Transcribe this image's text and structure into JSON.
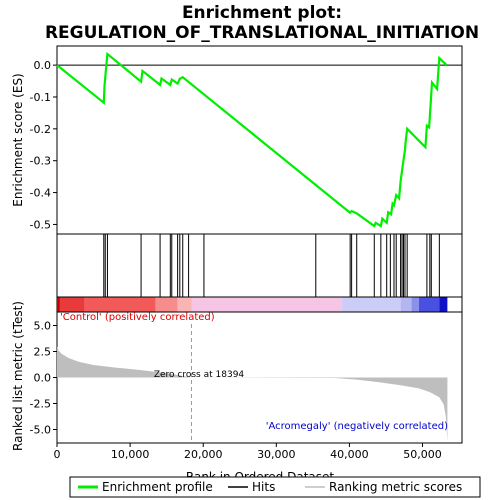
{
  "chart_data": {
    "type": "line",
    "title_line1": "Enrichment plot:",
    "title_line2": "REGULATION_OF_TRANSLATIONAL_INITIATION",
    "top_panel": {
      "ylabel": "Enrichment score (ES)",
      "ylim": [
        -0.53,
        0.06
      ],
      "yticks": [
        0.0,
        -0.1,
        -0.2,
        -0.3,
        -0.4,
        -0.5
      ],
      "ytick_labels": [
        "0.0",
        "-0.1",
        "-0.2",
        "-0.3",
        "-0.4",
        "-0.5"
      ],
      "line_color": "#00ee00",
      "es_points": [
        [
          0,
          0.0
        ],
        [
          6400,
          -0.118
        ],
        [
          6500,
          -0.065
        ],
        [
          6700,
          -0.012
        ],
        [
          6900,
          0.035
        ],
        [
          11500,
          -0.052
        ],
        [
          11700,
          -0.018
        ],
        [
          14100,
          -0.062
        ],
        [
          14300,
          -0.042
        ],
        [
          15500,
          -0.062
        ],
        [
          15700,
          -0.045
        ],
        [
          16500,
          -0.058
        ],
        [
          16800,
          -0.043
        ],
        [
          17200,
          -0.038
        ],
        [
          40100,
          -0.463
        ],
        [
          40300,
          -0.458
        ],
        [
          41000,
          -0.465
        ],
        [
          43400,
          -0.505
        ],
        [
          43600,
          -0.495
        ],
        [
          44300,
          -0.505
        ],
        [
          44500,
          -0.482
        ],
        [
          45100,
          -0.495
        ],
        [
          45300,
          -0.462
        ],
        [
          45700,
          -0.468
        ],
        [
          45900,
          -0.435
        ],
        [
          46100,
          -0.44
        ],
        [
          46400,
          -0.408
        ],
        [
          46800,
          -0.418
        ],
        [
          47000,
          -0.365
        ],
        [
          47200,
          -0.33
        ],
        [
          47400,
          -0.298
        ],
        [
          47600,
          -0.265
        ],
        [
          47700,
          -0.238
        ],
        [
          47900,
          -0.2
        ],
        [
          50400,
          -0.258
        ],
        [
          50600,
          -0.19
        ],
        [
          50900,
          -0.195
        ],
        [
          51100,
          -0.125
        ],
        [
          51300,
          -0.055
        ],
        [
          52000,
          -0.075
        ],
        [
          52300,
          0.022
        ],
        [
          53300,
          0.0
        ]
      ]
    },
    "hits": [
      6400,
      6600,
      6900,
      11500,
      14100,
      15500,
      15700,
      16500,
      16800,
      17200,
      18000,
      20100,
      35400,
      40100,
      40300,
      41000,
      43400,
      44300,
      45100,
      45600,
      46100,
      46400,
      47000,
      47200,
      47400,
      47600,
      47900,
      50600,
      51000,
      51200,
      52300
    ],
    "bottom_panel": {
      "ylabel": "Ranked list metric (tTest)",
      "ylim": [
        -6.3,
        6.3
      ],
      "yticks": [
        5.0,
        2.5,
        0.0,
        -2.5,
        -5.0
      ],
      "ytick_labels": [
        "5.0",
        "2.5",
        "0.0",
        "-2.5",
        "-5.0"
      ],
      "metric_points": [
        [
          0,
          3.0
        ],
        [
          200,
          2.6
        ],
        [
          600,
          2.3
        ],
        [
          1500,
          1.9
        ],
        [
          3000,
          1.5
        ],
        [
          5000,
          1.2
        ],
        [
          8000,
          0.95
        ],
        [
          11000,
          0.75
        ],
        [
          14000,
          0.5
        ],
        [
          16000,
          0.3
        ],
        [
          18394,
          0.0
        ],
        [
          38000,
          -0.05
        ],
        [
          41000,
          -0.2
        ],
        [
          44000,
          -0.45
        ],
        [
          47000,
          -0.75
        ],
        [
          49500,
          -1.05
        ],
        [
          51000,
          -1.4
        ],
        [
          52300,
          -1.9
        ],
        [
          52900,
          -2.6
        ],
        [
          53200,
          -3.8
        ],
        [
          53400,
          -6.2
        ]
      ],
      "fill_color": "#bebebe",
      "zero_cross_label": "Zero cross at 18394",
      "zero_cross_at": 18394,
      "positive_label": "'Control' (positively correlated)",
      "negative_label": "'Acromegaly' (negatively correlated)",
      "positive_label_color": "#dd0000",
      "negative_label_color": "#0000cc"
    },
    "xlabel": "Rank in Ordered Dataset",
    "xlim": [
      0,
      55400
    ],
    "xticks": [
      0,
      10000,
      20000,
      30000,
      40000,
      50000
    ],
    "xtick_labels": [
      "0",
      "10,000",
      "20,000",
      "30,000",
      "40,000",
      "50,000"
    ],
    "heatmap_segments": [
      {
        "from": 0,
        "to": 400,
        "color": "#cc0000"
      },
      {
        "from": 400,
        "to": 3800,
        "color": "#e83a3a"
      },
      {
        "from": 3800,
        "to": 13500,
        "color": "#f25a5a"
      },
      {
        "from": 13500,
        "to": 16500,
        "color": "#f68c8c"
      },
      {
        "from": 16500,
        "to": 18400,
        "color": "#f9b5b5"
      },
      {
        "from": 18400,
        "to": 39000,
        "color": "#f6c4e4"
      },
      {
        "from": 39000,
        "to": 47000,
        "color": "#cccdf6"
      },
      {
        "from": 47000,
        "to": 48500,
        "color": "#b3b6f2"
      },
      {
        "from": 48500,
        "to": 49500,
        "color": "#8b90ea"
      },
      {
        "from": 49500,
        "to": 52300,
        "color": "#4a50e0"
      },
      {
        "from": 52300,
        "to": 53400,
        "color": "#1010c8"
      }
    ],
    "legend": [
      {
        "label": "Enrichment profile",
        "color": "#00ee00",
        "kind": "thick-line"
      },
      {
        "label": "Hits",
        "color": "#000000",
        "kind": "line"
      },
      {
        "label": "Ranking metric scores",
        "color": "#bebebe",
        "kind": "line"
      }
    ],
    "legend_placement": "bottom",
    "grid": false
  }
}
